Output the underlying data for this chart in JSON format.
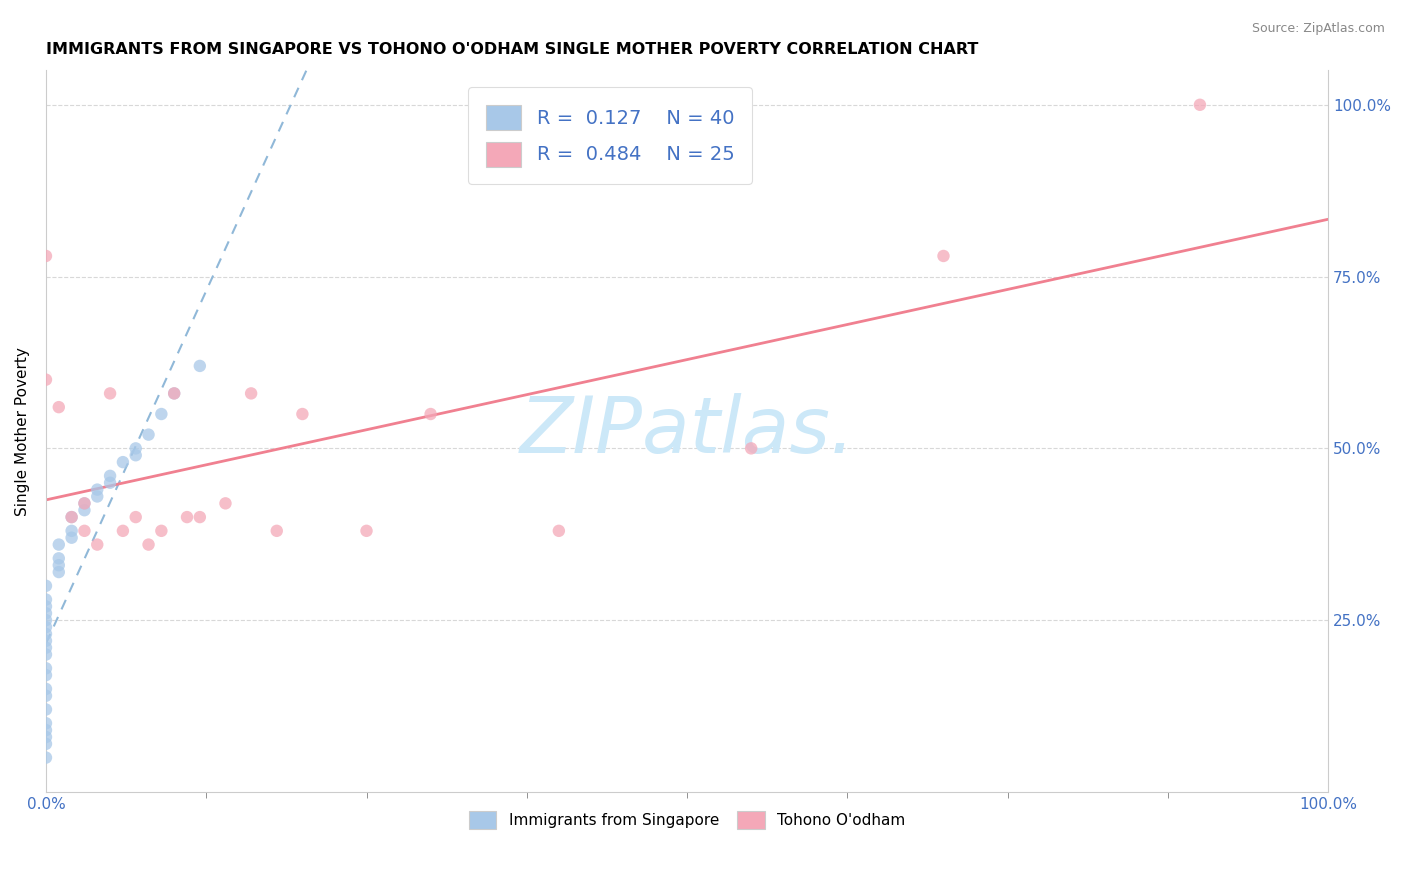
{
  "title": "IMMIGRANTS FROM SINGAPORE VS TOHONO O'ODHAM SINGLE MOTHER POVERTY CORRELATION CHART",
  "source": "Source: ZipAtlas.com",
  "ylabel": "Single Mother Poverty",
  "legend_label1": "Immigrants from Singapore",
  "legend_label2": "Tohono O'odham",
  "R1": 0.127,
  "N1": 40,
  "R2": 0.484,
  "N2": 25,
  "color1": "#a8c8e8",
  "color2": "#f4a8b8",
  "trendline1_color": "#90b8d8",
  "trendline2_color": "#f08090",
  "watermark_color": "#cce8f8",
  "sg_x": [
    0.0,
    0.0,
    0.0,
    0.0,
    0.0,
    0.0,
    0.0,
    0.0,
    0.0,
    0.0,
    0.0,
    0.0,
    0.0,
    0.0,
    0.0,
    0.0,
    0.0,
    0.0,
    0.0,
    0.0,
    0.01,
    0.01,
    0.01,
    0.01,
    0.02,
    0.02,
    0.02,
    0.03,
    0.03,
    0.04,
    0.04,
    0.05,
    0.05,
    0.06,
    0.07,
    0.07,
    0.08,
    0.09,
    0.1,
    0.12
  ],
  "sg_y": [
    0.05,
    0.07,
    0.08,
    0.09,
    0.1,
    0.12,
    0.14,
    0.15,
    0.17,
    0.18,
    0.2,
    0.21,
    0.22,
    0.23,
    0.24,
    0.25,
    0.26,
    0.27,
    0.28,
    0.3,
    0.32,
    0.33,
    0.34,
    0.36,
    0.37,
    0.38,
    0.4,
    0.41,
    0.42,
    0.43,
    0.44,
    0.45,
    0.46,
    0.48,
    0.49,
    0.5,
    0.52,
    0.55,
    0.58,
    0.62
  ],
  "to_x": [
    0.0,
    0.0,
    0.01,
    0.02,
    0.03,
    0.03,
    0.04,
    0.05,
    0.06,
    0.07,
    0.08,
    0.09,
    0.1,
    0.11,
    0.12,
    0.14,
    0.16,
    0.18,
    0.2,
    0.25,
    0.3,
    0.4,
    0.55,
    0.7,
    0.9
  ],
  "to_y": [
    0.6,
    0.78,
    0.56,
    0.4,
    0.38,
    0.42,
    0.36,
    0.58,
    0.38,
    0.4,
    0.36,
    0.38,
    0.58,
    0.4,
    0.4,
    0.42,
    0.58,
    0.38,
    0.55,
    0.38,
    0.55,
    0.38,
    0.5,
    0.78,
    1.0
  ],
  "xlim": [
    0.0,
    1.0
  ],
  "ylim": [
    0.0,
    1.05
  ],
  "ytick_positions": [
    0.25,
    0.5,
    0.75,
    1.0
  ],
  "ytick_labels": [
    "25.0%",
    "50.0%",
    "75.0%",
    "100.0%"
  ]
}
